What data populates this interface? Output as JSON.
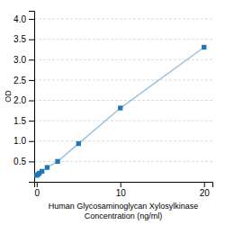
{
  "chart_data": {
    "type": "line",
    "xlabel": "Human Glycosaminoglycan Xylosylkinase\nConcentration (ng/ml)",
    "ylabel": "OD",
    "x": [
      0,
      0.156,
      0.313,
      0.625,
      1.25,
      2.5,
      5,
      10,
      20
    ],
    "values": [
      0.158,
      0.181,
      0.212,
      0.257,
      0.352,
      0.501,
      0.938,
      1.812,
      3.305
    ],
    "marker": "square",
    "xlim": [
      -0.3,
      21
    ],
    "ylim": [
      0.0,
      4.2
    ],
    "xticks": [
      0,
      10,
      20
    ],
    "yticks": [
      0.5,
      {
        "value": 1.0,
        "label": "1.0"
      },
      1.5,
      {
        "value": 2.0,
        "label": "2.0"
      },
      2.5,
      {
        "value": 3.0,
        "label": "3.0"
      },
      3.5,
      {
        "value": 4.0,
        "label": "4.0"
      }
    ],
    "grid": true
  }
}
